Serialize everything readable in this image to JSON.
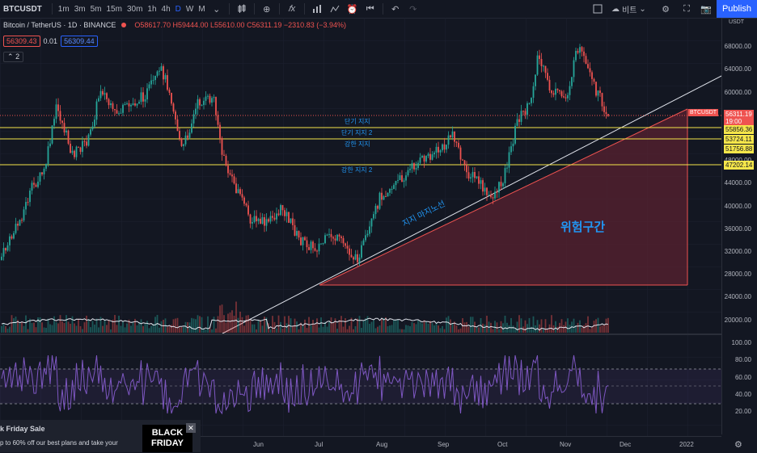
{
  "toolbar": {
    "symbol": "BTCUSDT",
    "timeframes": [
      "1m",
      "3m",
      "5m",
      "15m",
      "30m",
      "1h",
      "4h",
      "D",
      "W",
      "M"
    ],
    "active_timeframe": "D",
    "compare_label": "비트",
    "publish_label": "Publish"
  },
  "legend": {
    "title": "Bitcoin / TetherUS · 1D · BINANCE",
    "ohlc": "O58617.70 H59444.00 L55610.00 C56311.19 −2310.83 (−3.94%)",
    "sell_price": "56309.43",
    "spread": "0.01",
    "buy_price": "56309.44",
    "collapse_count": "2"
  },
  "price_axis": {
    "ticks": [
      "68000.00",
      "64000.00",
      "60000.00",
      "56000.00",
      "52000.00",
      "48000.00",
      "44000.00",
      "40000.00",
      "36000.00",
      "32000.00",
      "28000.00",
      "24000.00",
      "20000.00"
    ],
    "currency": "USDT",
    "current_symbol": "BTCUSDT",
    "current_price": "56311.19",
    "countdown": "19:00",
    "levels": [
      "55856.36",
      "53724.11",
      "51756.88",
      "47202.14"
    ]
  },
  "rsi_axis": {
    "ticks": [
      "100.00",
      "80.00",
      "60.00",
      "40.00",
      "20.00"
    ]
  },
  "time_axis": {
    "ticks": [
      "Jun",
      "Jul",
      "Aug",
      "Sep",
      "Oct",
      "Nov",
      "Dec",
      "2022"
    ]
  },
  "annotations": {
    "support_short": "단기 지지",
    "support_short_2": "단기 지지 2",
    "support_strong": "강한 지지",
    "support_strong_2": "강한 지지 2",
    "trendline": "지지 마지노선",
    "danger_zone": "위험구간"
  },
  "promo": {
    "title": "k Friday Sale",
    "body": "p to 60% off our best plans and take your",
    "image_text_1": "BLACK",
    "image_text_2": "FRIDAY"
  },
  "colors": {
    "up": "#26a69a",
    "down": "#ef5350",
    "level_line": "#f5e64a",
    "danger_zone": "#5a2230",
    "rsi": "#7e57c2",
    "accent": "#2962ff"
  }
}
